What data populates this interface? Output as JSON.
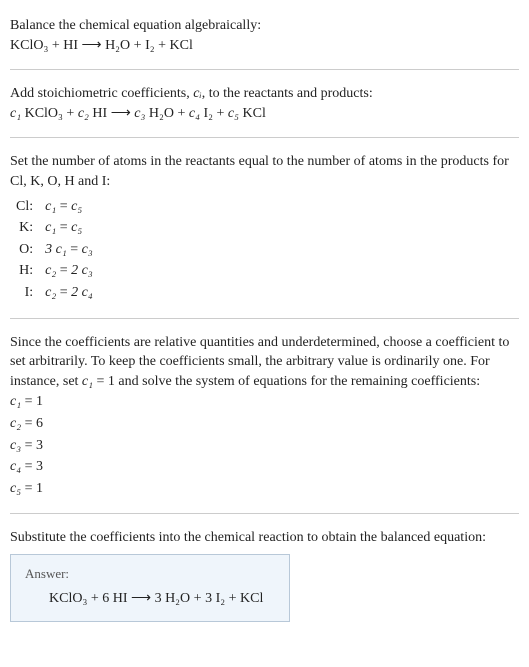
{
  "section1": {
    "line1": "Balance the chemical equation algebraically:",
    "eq": "KClO₃ + HI ⟶ H₂O + I₂ + KCl"
  },
  "section2": {
    "line1_pre": "Add stoichiometric coefficients, ",
    "line1_ci": "cᵢ",
    "line1_post": ", to the reactants and products:",
    "eq_c1": "c₁",
    "eq_r1": " KClO₃ + ",
    "eq_c2": "c₂",
    "eq_r2": " HI ⟶ ",
    "eq_c3": "c₃",
    "eq_r3": " H₂O + ",
    "eq_c4": "c₄",
    "eq_r4": " I₂ + ",
    "eq_c5": "c₅",
    "eq_r5": " KCl"
  },
  "section3": {
    "intro": "Set the number of atoms in the reactants equal to the number of atoms in the products for Cl, K, O, H and I:",
    "rows": [
      {
        "el": "Cl:",
        "lhs": "c₁",
        "rhs": "c₅"
      },
      {
        "el": "K:",
        "lhs": "c₁",
        "rhs": "c₅"
      },
      {
        "el": "O:",
        "lhs": "3 c₁",
        "rhs": "c₃"
      },
      {
        "el": "H:",
        "lhs": "c₂",
        "rhs": "2 c₃"
      },
      {
        "el": "I:",
        "lhs": "c₂",
        "rhs": "2 c₄"
      }
    ]
  },
  "section4": {
    "intro_pre": "Since the coefficients are relative quantities and underdetermined, choose a coefficient to set arbitrarily. To keep the coefficients small, the arbitrary value is ordinarily one. For instance, set ",
    "intro_c1": "c₁",
    "intro_post": " = 1 and solve the system of equations for the remaining coefficients:",
    "assignments": [
      {
        "lhs": "c₁",
        "rhs": "1"
      },
      {
        "lhs": "c₂",
        "rhs": "6"
      },
      {
        "lhs": "c₃",
        "rhs": "3"
      },
      {
        "lhs": "c₄",
        "rhs": "3"
      },
      {
        "lhs": "c₅",
        "rhs": "1"
      }
    ]
  },
  "section5": {
    "intro": "Substitute the coefficients into the chemical reaction to obtain the balanced equation:",
    "answer_label": "Answer:",
    "answer_eq": "KClO₃ + 6 HI ⟶ 3 H₂O + 3 I₂ + KCl"
  },
  "colors": {
    "text": "#222222",
    "divider": "#cccccc",
    "answer_bg": "#eff5fb",
    "answer_border": "#b8c8d8",
    "answer_label": "#555555"
  }
}
